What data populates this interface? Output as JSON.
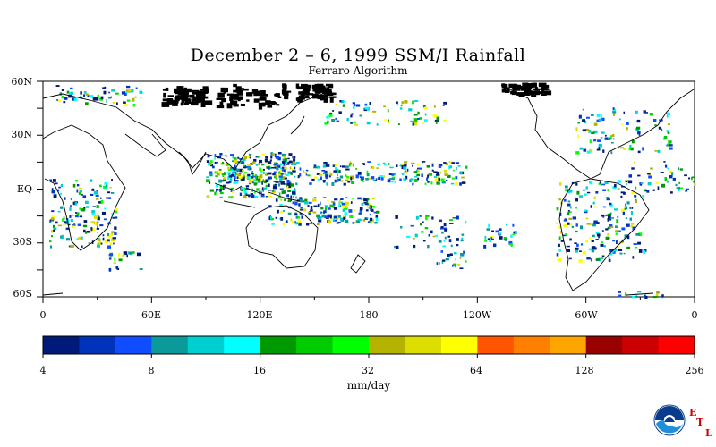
{
  "title": "December 2 – 6, 1999 SSM/I Rainfall",
  "subtitle": "Ferraro Algorithm",
  "map": {
    "lat_labels": [
      "60N",
      "30N",
      "EQ",
      "30S",
      "60S"
    ],
    "lon_labels": [
      "0",
      "60E",
      "120E",
      "180",
      "120W",
      "60W",
      "0"
    ],
    "colorbar_labels": [
      "4",
      "8",
      "16",
      "32",
      "64",
      "128",
      "256"
    ],
    "units": "mm/day",
    "colorbar_colors": [
      "#001a7a",
      "#0033bb",
      "#0f4dff",
      "#0a9a9a",
      "#00cfcf",
      "#00ffff",
      "#009900",
      "#00cc00",
      "#00ff00",
      "#b3b300",
      "#dddd00",
      "#ffff00",
      "#ff5500",
      "#ff7f00",
      "#ffa500",
      "#990000",
      "#cc0000",
      "#ff0000"
    ]
  },
  "logo": {
    "agency": "NOAA",
    "lab_letters": [
      "E",
      "T",
      "L"
    ],
    "icon": "noaa-logo-icon"
  }
}
